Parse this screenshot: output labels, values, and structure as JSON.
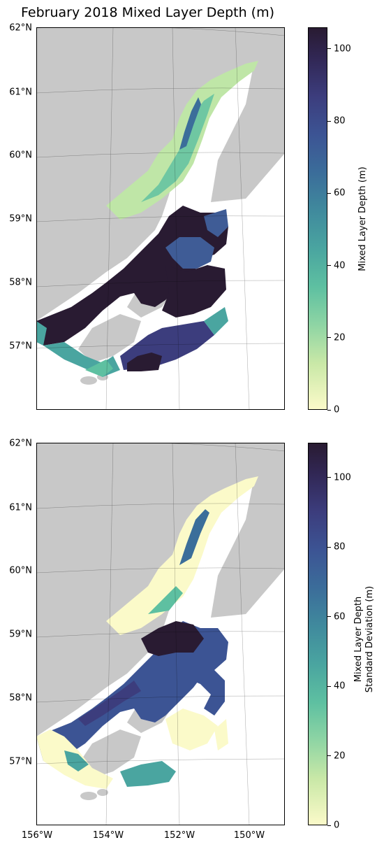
{
  "title": "February 2018 Mixed Layer Depth (m)",
  "panels": [
    {
      "name": "mean",
      "colorbar_label": "Mixed Layer Depth (m)",
      "colorbar_ticks": [
        "0",
        "20",
        "40",
        "60",
        "80",
        "100"
      ],
      "colorbar_max": 106
    },
    {
      "name": "std",
      "colorbar_label_line1": "Mixed Layer Depth",
      "colorbar_label_line2": "Standard Deviation (m)",
      "colorbar_ticks": [
        "0",
        "20",
        "40",
        "60",
        "80",
        "100"
      ],
      "colorbar_max": 110
    }
  ],
  "lat_labels": [
    "62°N",
    "61°N",
    "60°N",
    "59°N",
    "58°N",
    "57°N"
  ],
  "lon_labels": [
    "156°W",
    "154°W",
    "152°W",
    "150°W"
  ],
  "colors": {
    "land": "#c8c8c8",
    "ocean": "#ffffff",
    "grid": "#000000",
    "shallow": "#fbfac9",
    "deep": "#291b32"
  },
  "colormap": "deep (yellow-green-blue-purple)"
}
